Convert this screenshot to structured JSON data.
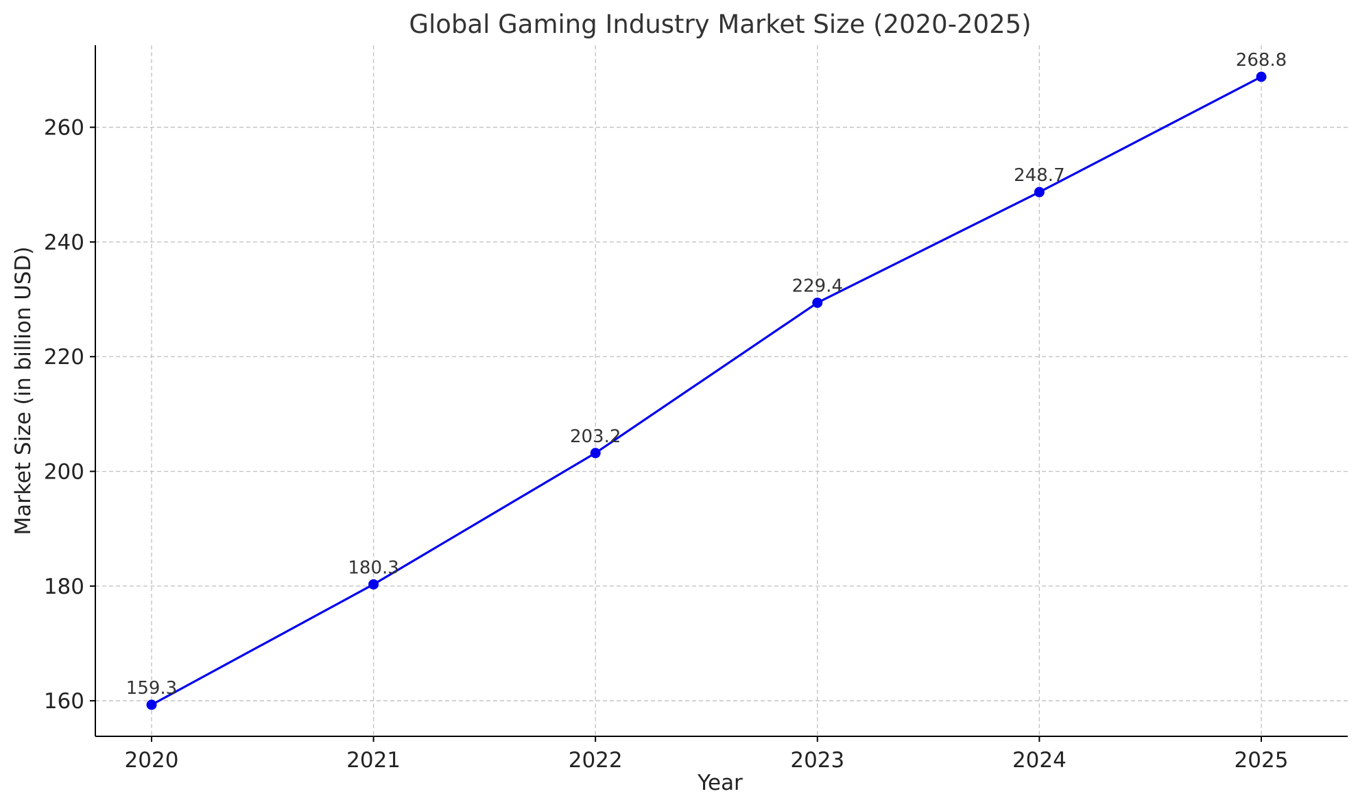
{
  "colors": {
    "series": "#0000ee",
    "grid": "#c4c4c4",
    "text": "#333333"
  },
  "chart_data": {
    "type": "line",
    "title": "Global Gaming Industry Market Size (2020-2025)",
    "xlabel": "Year",
    "ylabel": "Market Size (in billion USD)",
    "categories": [
      "2020",
      "2021",
      "2022",
      "2023",
      "2024",
      "2025"
    ],
    "series": [
      {
        "values": [
          159.3,
          180.3,
          203.2,
          229.4,
          248.7,
          268.8
        ]
      }
    ],
    "data_labels": [
      "159.3",
      "180.3",
      "203.2",
      "229.4",
      "248.7",
      "268.8"
    ],
    "yticks": [
      160,
      180,
      200,
      220,
      240,
      260
    ],
    "ytick_labels": [
      "160",
      "180",
      "200",
      "220",
      "240",
      "260"
    ],
    "ylim": [
      153.8,
      274.3
    ],
    "grid": true,
    "markers": true
  }
}
